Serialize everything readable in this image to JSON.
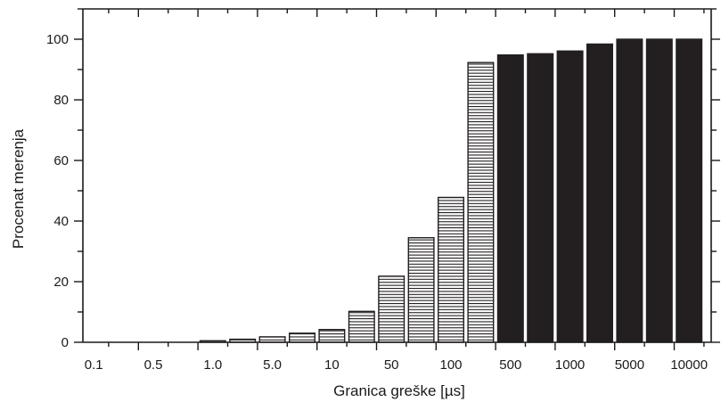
{
  "chart_data": {
    "type": "bar",
    "title": "",
    "xlabel": "Granica greške [µs]",
    "ylabel": "Procenat merenja",
    "ylim": [
      0,
      110
    ],
    "yticks": [
      0,
      20,
      40,
      60,
      80,
      100
    ],
    "grid": false,
    "legend": "none",
    "x_tick_labels": [
      "0.1",
      "0.5",
      "1.0",
      "5.0",
      "10",
      "50",
      "100",
      "500",
      "1000",
      "5000",
      "10000"
    ],
    "values": [
      0,
      0,
      0,
      0,
      0.5,
      1,
      1.8,
      3,
      4.2,
      10.2,
      21.8,
      34.5,
      47.8,
      92.3,
      94.8,
      95.2,
      96.1,
      98.4,
      100,
      100,
      100
    ],
    "bar_styles": [
      "striped",
      "striped",
      "striped",
      "striped",
      "striped",
      "striped",
      "striped",
      "striped",
      "striped",
      "striped",
      "striped",
      "striped",
      "striped",
      "striped",
      "solid",
      "solid",
      "solid",
      "solid",
      "solid",
      "solid",
      "solid"
    ],
    "colors": {
      "solid": "#231f20",
      "stripe": "#231f20",
      "axis": "#1a1a1a"
    }
  }
}
